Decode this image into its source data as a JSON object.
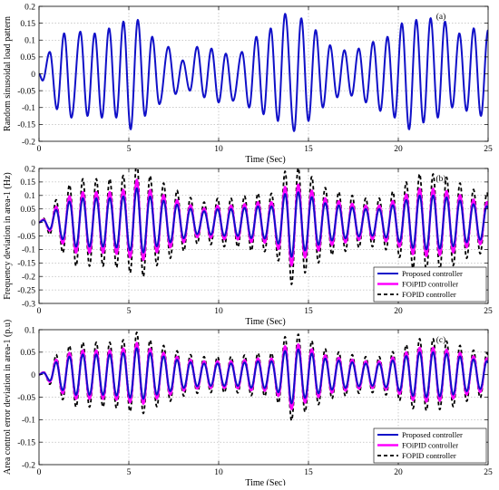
{
  "chart_data": [
    {
      "panel": "(a)",
      "type": "line",
      "xlabel": "Time (Sec)",
      "ylabel": "Random sinusoidal load pattern",
      "xlim": [
        0,
        25
      ],
      "ylim": [
        -0.2,
        0.2
      ],
      "xticks": [
        "0",
        "5",
        "10",
        "15",
        "20",
        "25"
      ],
      "yticks": [
        "0.2",
        "0.15",
        "0.1",
        "0.05",
        "0",
        "-0.05",
        "-0.1",
        "-0.15",
        "-0.2"
      ],
      "grid": true,
      "period_sec": 0.85,
      "x": [
        0,
        0.2,
        0.6,
        1.0,
        1.4,
        1.8,
        2.3,
        2.7,
        3.1,
        3.5,
        3.9,
        4.3,
        4.7,
        5.1,
        5.5,
        5.9,
        6.3,
        6.7,
        7.2,
        7.6,
        8.0,
        8.4,
        8.8,
        9.2,
        9.6,
        10.0,
        10.4,
        10.8,
        11.3,
        11.7,
        12.1,
        12.5,
        12.9,
        13.3,
        13.7,
        14.2,
        14.6,
        15.0,
        15.4,
        15.8,
        16.2,
        16.6,
        17.0,
        17.4,
        17.8,
        18.2,
        18.6,
        19.0,
        19.4,
        19.8,
        20.2,
        20.6,
        21.0,
        21.4,
        21.8,
        22.2,
        22.6,
        23.0,
        23.4,
        23.8,
        24.2,
        24.6,
        25.0
      ],
      "y": [
        0.0,
        -0.02,
        0.065,
        -0.105,
        0.12,
        -0.13,
        0.125,
        -0.125,
        0.12,
        -0.13,
        0.135,
        -0.13,
        0.155,
        -0.165,
        0.16,
        -0.125,
        0.11,
        -0.09,
        0.08,
        -0.06,
        0.04,
        -0.05,
        0.08,
        -0.07,
        0.075,
        -0.085,
        0.06,
        -0.08,
        0.065,
        -0.1,
        0.11,
        -0.12,
        0.135,
        -0.14,
        0.178,
        -0.17,
        0.165,
        -0.14,
        0.13,
        -0.1,
        0.085,
        -0.07,
        0.07,
        -0.065,
        0.075,
        -0.085,
        0.095,
        -0.11,
        0.11,
        -0.13,
        0.15,
        -0.165,
        0.16,
        -0.145,
        0.165,
        -0.13,
        0.155,
        -0.1,
        0.12,
        -0.11,
        0.135,
        -0.125,
        0.13
      ],
      "series": [
        {
          "color": "#1010c8",
          "dash": "solid",
          "width": 2.0,
          "scale": 1.0
        }
      ]
    },
    {
      "panel": "(b)",
      "type": "line",
      "xlabel": "Time (Sec)",
      "ylabel": "Frequency deviation in area-1 (Hz)",
      "xlim": [
        0,
        25
      ],
      "ylim": [
        -0.3,
        0.2
      ],
      "xticks": [
        "0",
        "5",
        "10",
        "15",
        "20",
        "25"
      ],
      "yticks": [
        "0.2",
        "0.15",
        "0.1",
        "0.05",
        "0",
        "-0.05",
        "-0.1",
        "-0.15",
        "-0.2",
        "-0.25",
        "-0.3"
      ],
      "grid": true,
      "legend_location": "bottom-right",
      "period_sec": 0.75,
      "envelope_x": [
        0,
        0.5,
        1.0,
        2.0,
        3.0,
        4.0,
        5.0,
        5.5,
        6.0,
        7.0,
        8.0,
        9.0,
        10.0,
        11.0,
        12.0,
        13.0,
        13.5,
        14.0,
        14.5,
        15.0,
        16.0,
        17.0,
        18.0,
        19.0,
        20.0,
        21.0,
        22.0,
        23.0,
        24.0,
        25.0
      ],
      "envelope": [
        0.0,
        0.02,
        0.05,
        0.09,
        0.09,
        0.09,
        0.1,
        0.13,
        0.1,
        0.08,
        0.06,
        0.04,
        0.05,
        0.05,
        0.06,
        0.06,
        0.09,
        0.13,
        0.11,
        0.1,
        0.07,
        0.06,
        0.05,
        0.05,
        0.07,
        0.1,
        0.1,
        0.09,
        0.07,
        0.06
      ],
      "series": [
        {
          "name": "Proposed controller",
          "color": "#1010c8",
          "dash": "solid",
          "width": 2.0,
          "scale": 1.0
        },
        {
          "name": "FOiPID controller",
          "color": "#ff00ff",
          "dash": "solid",
          "width": 2.4,
          "scale": 1.25
        },
        {
          "name": "FOPID controller",
          "color": "#000000",
          "dash": "4 3",
          "width": 1.8,
          "scale": 1.8
        }
      ]
    },
    {
      "panel": "(c)",
      "type": "line",
      "xlabel": "Time (Sec)",
      "ylabel": "Area control error deviation in area-1 (p.u)",
      "xlim": [
        0,
        25
      ],
      "ylim": [
        -0.2,
        0.1
      ],
      "xticks": [
        "0",
        "5",
        "10",
        "15",
        "20",
        "25"
      ],
      "yticks": [
        "0.1",
        "0.05",
        "0",
        "-0.05",
        "-0.1",
        "-0.15",
        "-0.2"
      ],
      "grid": true,
      "legend_location": "bottom-right",
      "period_sec": 0.75,
      "envelope_x": [
        0,
        0.5,
        1.0,
        2.0,
        3.0,
        4.0,
        5.0,
        5.5,
        6.0,
        7.0,
        8.0,
        9.0,
        10.0,
        11.0,
        12.0,
        13.0,
        13.5,
        14.0,
        14.5,
        15.0,
        16.0,
        17.0,
        18.0,
        19.0,
        20.0,
        21.0,
        22.0,
        23.0,
        24.0,
        25.0
      ],
      "envelope": [
        0.0,
        0.01,
        0.03,
        0.045,
        0.045,
        0.045,
        0.05,
        0.06,
        0.05,
        0.04,
        0.03,
        0.025,
        0.025,
        0.025,
        0.03,
        0.03,
        0.045,
        0.065,
        0.055,
        0.05,
        0.035,
        0.03,
        0.025,
        0.025,
        0.035,
        0.05,
        0.05,
        0.045,
        0.035,
        0.03
      ],
      "series": [
        {
          "name": "Proposed controller",
          "color": "#1010c8",
          "dash": "solid",
          "width": 2.0,
          "scale": 1.0
        },
        {
          "name": "FOiPID controller",
          "color": "#ff00ff",
          "dash": "solid",
          "width": 2.4,
          "scale": 1.2
        },
        {
          "name": "FOPID controller",
          "color": "#000000",
          "dash": "4 3",
          "width": 1.8,
          "scale": 1.6
        }
      ]
    }
  ]
}
